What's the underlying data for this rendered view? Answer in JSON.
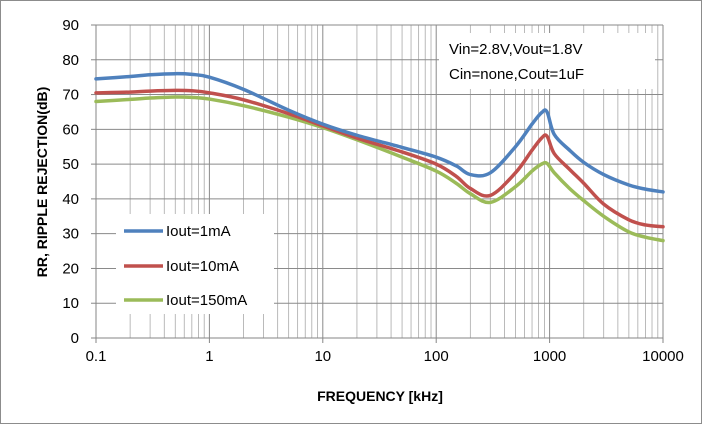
{
  "chart_data": {
    "type": "line",
    "title": "",
    "xlabel": "FREQUENCY [kHz]",
    "ylabel": "RR, RIPPLE REJECTION(dB)",
    "xscale": "log",
    "xlim": [
      0.1,
      10000
    ],
    "ylim": [
      0,
      90
    ],
    "xticks": [
      "0.1",
      "1",
      "10",
      "100",
      "1000",
      "10000"
    ],
    "yticks": [
      "0",
      "10",
      "20",
      "30",
      "40",
      "50",
      "60",
      "70",
      "80",
      "90"
    ],
    "grid": true,
    "legend_position": "bottom-left",
    "annotation": [
      "Vin=2.8V,Vout=1.8V",
      "Cin=none,Cout=1uF"
    ],
    "series": [
      {
        "name": "Iout=1mA",
        "color": "#4f81bd",
        "x": [
          0.1,
          0.2,
          0.3,
          0.5,
          0.7,
          1,
          2,
          5,
          10,
          20,
          50,
          100,
          150,
          200,
          300,
          500,
          700,
          850,
          950,
          1100,
          1500,
          2000,
          3000,
          5000,
          7000,
          10000
        ],
        "y": [
          74.5,
          75.2,
          75.7,
          76.0,
          75.8,
          75.0,
          71.5,
          65.5,
          61.5,
          58.3,
          54.8,
          52.0,
          49.5,
          47.0,
          47.5,
          55.0,
          61.5,
          64.8,
          65.0,
          58.5,
          54.0,
          50.5,
          47.0,
          44.0,
          42.8,
          42.0
        ]
      },
      {
        "name": "Iout=10mA",
        "color": "#c0504d",
        "x": [
          0.1,
          0.2,
          0.3,
          0.5,
          0.7,
          1,
          2,
          5,
          10,
          20,
          50,
          100,
          150,
          200,
          300,
          500,
          700,
          850,
          950,
          1100,
          1500,
          2000,
          3000,
          5000,
          7000,
          10000
        ],
        "y": [
          70.5,
          70.7,
          71.0,
          71.2,
          71.1,
          70.5,
          68.5,
          64.5,
          61.0,
          57.5,
          53.5,
          50.0,
          46.5,
          43.0,
          41.0,
          47.5,
          54.0,
          57.5,
          58.0,
          53.0,
          48.5,
          44.5,
          38.5,
          34.0,
          32.5,
          32.0
        ]
      },
      {
        "name": "Iout=150mA",
        "color": "#9bbb59",
        "x": [
          0.1,
          0.2,
          0.3,
          0.5,
          0.7,
          1,
          2,
          5,
          10,
          20,
          50,
          100,
          150,
          200,
          300,
          500,
          700,
          850,
          950,
          1100,
          1500,
          2000,
          3000,
          5000,
          7000,
          10000
        ],
        "y": [
          68.0,
          68.6,
          69.0,
          69.3,
          69.2,
          68.7,
          66.8,
          63.5,
          60.5,
          57.0,
          52.0,
          48.0,
          44.5,
          41.5,
          39.0,
          43.5,
          48.0,
          50.0,
          50.2,
          47.5,
          43.0,
          39.5,
          35.0,
          30.5,
          29.0,
          28.0
        ]
      }
    ]
  }
}
